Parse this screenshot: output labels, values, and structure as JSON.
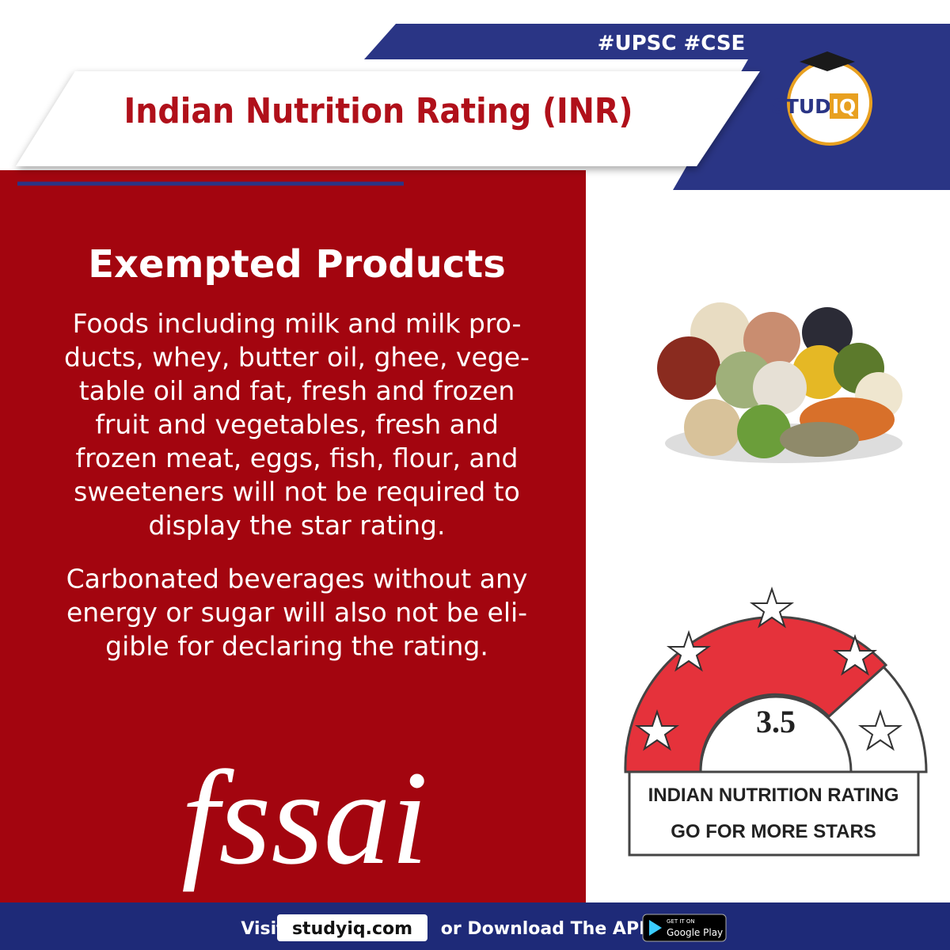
{
  "header": {
    "tags": "#UPSC #CSE",
    "title": "Indian Nutrition Rating (INR)",
    "logo_left": "STUDY",
    "logo_right": "IQ"
  },
  "content": {
    "heading": "Exempted Products",
    "paragraphs": [
      {
        "lines": [
          "Foods including milk and milk pro-",
          "ducts, whey, butter oil, ghee, vege-",
          "table oil and fat, fresh and frozen",
          "fruit and vegetables, fresh and",
          "frozen meat, eggs, fish, flour, and",
          "sweeteners will not be required to",
          "display the star rating."
        ]
      },
      {
        "lines": [
          "Carbonated beverages without any",
          "energy or sugar will also not be eli-",
          "gible for declaring the rating."
        ]
      }
    ],
    "fssai_logo": "fssai"
  },
  "rating_badge": {
    "rating": "3.5",
    "line1": "INDIAN NUTRITION RATING",
    "line2": "GO FOR MORE STARS"
  },
  "footer": {
    "visit": "Visit",
    "site": "studyiq.com",
    "download": "or Download The APP",
    "store_small": "GET IT ON",
    "store": "Google Play"
  }
}
